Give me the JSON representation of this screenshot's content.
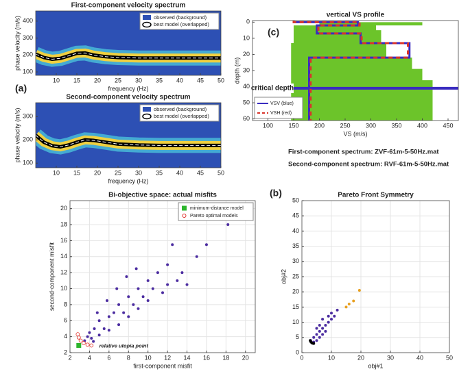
{
  "chart_data": [
    {
      "type": "heatmap",
      "title": "First-component velocity spectrum",
      "panel": "(a)",
      "x_label": "frequency (Hz)",
      "y_label": "phase velocity (m/s)",
      "xlim": [
        5,
        50
      ],
      "ylim": [
        80,
        460
      ],
      "xticks": [
        10,
        15,
        20,
        25,
        30,
        35,
        40,
        45,
        50
      ],
      "yticks": [
        100,
        200,
        300,
        400
      ],
      "legend": "upper right",
      "background": {
        "name": "observed (background)",
        "color": "#2d50b4"
      },
      "series": [
        {
          "name": "best model (overlapped)",
          "color": "#000000",
          "x": [
            5,
            7,
            9,
            11,
            13,
            15,
            17,
            19,
            22,
            25,
            30,
            35,
            40,
            45,
            50
          ],
          "y": [
            205,
            185,
            175,
            180,
            195,
            210,
            212,
            200,
            190,
            185,
            182,
            182,
            182,
            182,
            182
          ]
        }
      ]
    },
    {
      "type": "heatmap",
      "title": "Second-component velocity spectrum",
      "x_label": "frequency (Hz)",
      "y_label": "phase velocity (m/s)",
      "xlim": [
        5,
        50
      ],
      "ylim": [
        80,
        360
      ],
      "xticks": [
        10,
        15,
        20,
        25,
        30,
        35,
        40,
        45,
        50
      ],
      "yticks": [
        100,
        200,
        300
      ],
      "legend": "upper right",
      "background": {
        "name": "observed (background)",
        "color": "#2d50b4"
      },
      "series": [
        {
          "name": "best model (overlapped)",
          "color": "#000000",
          "x": [
            5,
            7,
            9,
            11,
            13,
            15,
            17,
            19,
            22,
            25,
            30,
            35,
            40,
            45,
            50
          ],
          "y": [
            220,
            190,
            175,
            170,
            178,
            190,
            200,
            198,
            190,
            182,
            178,
            176,
            176,
            176,
            176
          ]
        }
      ]
    },
    {
      "type": "profile",
      "title": "vertical VS profile",
      "panel": "(c)",
      "x_label": "VS (m/s)",
      "y_label": "depth (m)",
      "xlim": [
        70,
        470
      ],
      "ylim": [
        61,
        -1
      ],
      "xticks": [
        100,
        150,
        200,
        250,
        300,
        350,
        400,
        450
      ],
      "yticks": [
        0,
        10,
        20,
        30,
        40,
        50,
        60
      ],
      "legend": "lower left",
      "critical_depth": {
        "label": "critical depth",
        "value": 41
      },
      "envelope": {
        "depth": [
          0,
          2,
          5,
          13,
          22,
          29,
          36,
          61
        ],
        "vmin": [
          200,
          150,
          150,
          145,
          145,
          145,
          145,
          145
        ],
        "vmax": [
          400,
          310,
          320,
          330,
          380,
          400,
          420,
          445
        ]
      },
      "series": [
        {
          "name": "VSV (blue)",
          "color": "#3a2cc0",
          "x": [
            150,
            150,
            275,
            275,
            195,
            195,
            280,
            280,
            375,
            375,
            180,
            180
          ],
          "y": [
            -1,
            0,
            0,
            2,
            2,
            7,
            7,
            13,
            13,
            22,
            22,
            61
          ]
        },
        {
          "name": "VSH (red)",
          "color": "#d9342b",
          "x": [
            150,
            150,
            278,
            278,
            198,
            198,
            282,
            282,
            372,
            372,
            183,
            183
          ],
          "y": [
            -1,
            0,
            0,
            2,
            2,
            7,
            7,
            13,
            13,
            22,
            22,
            61
          ]
        }
      ],
      "notes": [
        "First-component spectrum: ZVF-61m-5-50Hz.mat",
        "Second-component spectrum: RVF-61m-5-50Hz.mat"
      ]
    },
    {
      "type": "scatter",
      "title": "Bi-objective space: actual misfits",
      "x_label": "first-component misfit",
      "y_label": "second-component misfit",
      "xlim": [
        2,
        21
      ],
      "ylim": [
        2,
        21
      ],
      "xticks": [
        2,
        4,
        6,
        8,
        10,
        12,
        14,
        16,
        18,
        20
      ],
      "yticks": [
        2,
        4,
        6,
        8,
        10,
        12,
        14,
        16,
        18,
        20
      ],
      "grid": true,
      "legend": "upper right",
      "annotation": {
        "text": "relative utopia point",
        "x": 5,
        "y": 2.8
      },
      "series": [
        {
          "color": "#4b2ca0",
          "marker": "dot",
          "x": [
            3.5,
            4,
            4.2,
            4.5,
            5,
            5,
            5.5,
            6,
            6,
            6.5,
            7,
            7,
            7.5,
            8,
            8,
            8.5,
            9,
            9,
            9.5,
            10,
            10,
            10.5,
            11,
            11.5,
            12,
            12,
            12.5,
            13,
            13.5,
            14,
            15,
            16,
            18.2,
            4.8,
            5.8,
            6.8,
            7.8,
            8.8,
            3.8,
            4.4
          ],
          "y": [
            3.5,
            4.5,
            3.8,
            5,
            4.2,
            6,
            5,
            6.5,
            4.8,
            7,
            5.5,
            8,
            7,
            9,
            6.5,
            8,
            10,
            7.5,
            9,
            11,
            8.5,
            10,
            12,
            9.5,
            13,
            10.5,
            15.5,
            11,
            12,
            10.5,
            14,
            15.5,
            18,
            7,
            8.5,
            10,
            11.5,
            12.5,
            4,
            3.4
          ]
        },
        {
          "name": "minimum-distance model",
          "color": "#2db52d",
          "marker": "square",
          "x": [
            2.9
          ],
          "y": [
            2.9
          ]
        },
        {
          "name": "Pareto optimal models",
          "color": "#e0302a",
          "marker": "circle",
          "x": [
            2.8,
            2.9,
            3.1,
            3.4,
            3.8,
            4.2
          ],
          "y": [
            4.3,
            3.9,
            3.5,
            3.2,
            3,
            2.9
          ]
        }
      ]
    },
    {
      "type": "scatter",
      "title": "Pareto Front Symmetry",
      "panel": "(b)",
      "x_label": "obj#1",
      "y_label": "obj#2",
      "xlim": [
        0,
        50
      ],
      "ylim": [
        0,
        50
      ],
      "xticks": [
        0,
        10,
        20,
        30,
        40,
        50
      ],
      "yticks": [
        0,
        5,
        10,
        15,
        20,
        25,
        30,
        35,
        40,
        45,
        50
      ],
      "grid": true,
      "series": [
        {
          "color": "#4b2ca0",
          "marker": "dot",
          "x": [
            3,
            4,
            4,
            5,
            5,
            6,
            6,
            7,
            7,
            8,
            8,
            9,
            10,
            11,
            12,
            5,
            6,
            7,
            9,
            10
          ],
          "y": [
            4,
            5,
            3.5,
            6,
            4,
            7,
            5,
            8,
            6,
            9,
            7,
            10,
            11,
            12,
            14,
            8,
            9,
            11,
            12,
            13
          ]
        },
        {
          "color": "#000000",
          "marker": "dot",
          "x": [
            2.8,
            3,
            3.3,
            3.6,
            4
          ],
          "y": [
            4,
            3.6,
            3.3,
            3.1,
            3
          ]
        },
        {
          "color": "#e8a020",
          "marker": "dot",
          "x": [
            15,
            16,
            17.5,
            19.5
          ],
          "y": [
            15,
            16,
            17,
            20.5
          ]
        }
      ]
    }
  ]
}
